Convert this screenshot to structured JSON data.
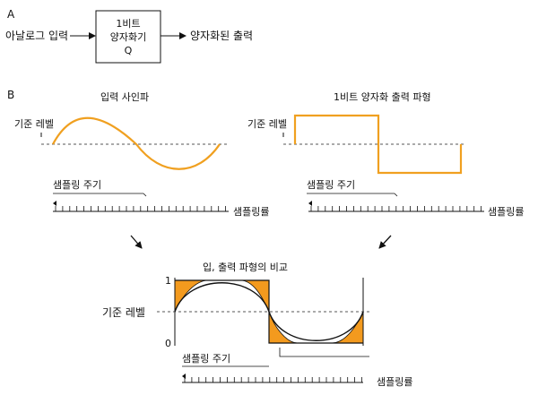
{
  "section_a": {
    "label": "A",
    "input_label": "아날로그 입력",
    "box_line1": "1비트",
    "box_line2": "양자화기",
    "box_line3": "Q",
    "output_label": "양자화된 출력"
  },
  "section_b": {
    "label": "B",
    "left_title": "입력 사인파",
    "right_title": "1비트 양자화 출력 파형",
    "ref_label": "기준 레벨",
    "period_label": "샘플링 주기",
    "rate_label": "샘플링률",
    "compare_title": "입, 출력 파형의 비교",
    "level_high": "1",
    "level_low": "0"
  },
  "colors": {
    "accent": "#F0A020",
    "fill": "#F39A1E",
    "line": "#111111",
    "dash": "#555555"
  }
}
